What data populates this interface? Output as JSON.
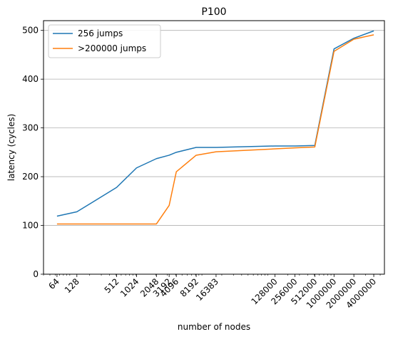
{
  "chart_data": {
    "type": "line",
    "title": "P100",
    "xlabel": "number of nodes",
    "ylabel": "latency (cycles)",
    "xscale": "log",
    "xlim": [
      40,
      5800000
    ],
    "ylim": [
      0,
      520
    ],
    "yticks": [
      0,
      100,
      200,
      300,
      400,
      500
    ],
    "xticks": [
      64,
      128,
      512,
      1024,
      2048,
      3192,
      4096,
      8192,
      16383,
      128000,
      256000,
      512000,
      1000000,
      2000000,
      4000000
    ],
    "xtick_labels": [
      "64",
      "128",
      "512",
      "1024",
      "2048",
      "3192",
      "4096",
      "8192",
      "16383",
      "128000",
      "256000",
      "512000",
      "1000000",
      "2000000",
      "4000000"
    ],
    "grid": "y",
    "legend_position": "top-left",
    "series": [
      {
        "name": "256 jumps",
        "color": "#1f77b4",
        "x": [
          64,
          128,
          512,
          1024,
          2048,
          3192,
          4096,
          8192,
          16383,
          128000,
          256000,
          512000,
          1000000,
          2000000,
          4000000
        ],
        "y": [
          119,
          128,
          178,
          218,
          237,
          244,
          250,
          260,
          260,
          263,
          263,
          264,
          462,
          484,
          499
        ]
      },
      {
        "name": ">200000 jumps",
        "color": "#ff7f0e",
        "x": [
          64,
          128,
          512,
          1024,
          2048,
          3192,
          4096,
          8192,
          16383,
          128000,
          256000,
          512000,
          1000000,
          2000000,
          4000000
        ],
        "y": [
          103,
          103,
          103,
          103,
          103,
          141,
          210,
          244,
          251,
          257,
          259,
          261,
          457,
          482,
          491
        ]
      }
    ]
  }
}
